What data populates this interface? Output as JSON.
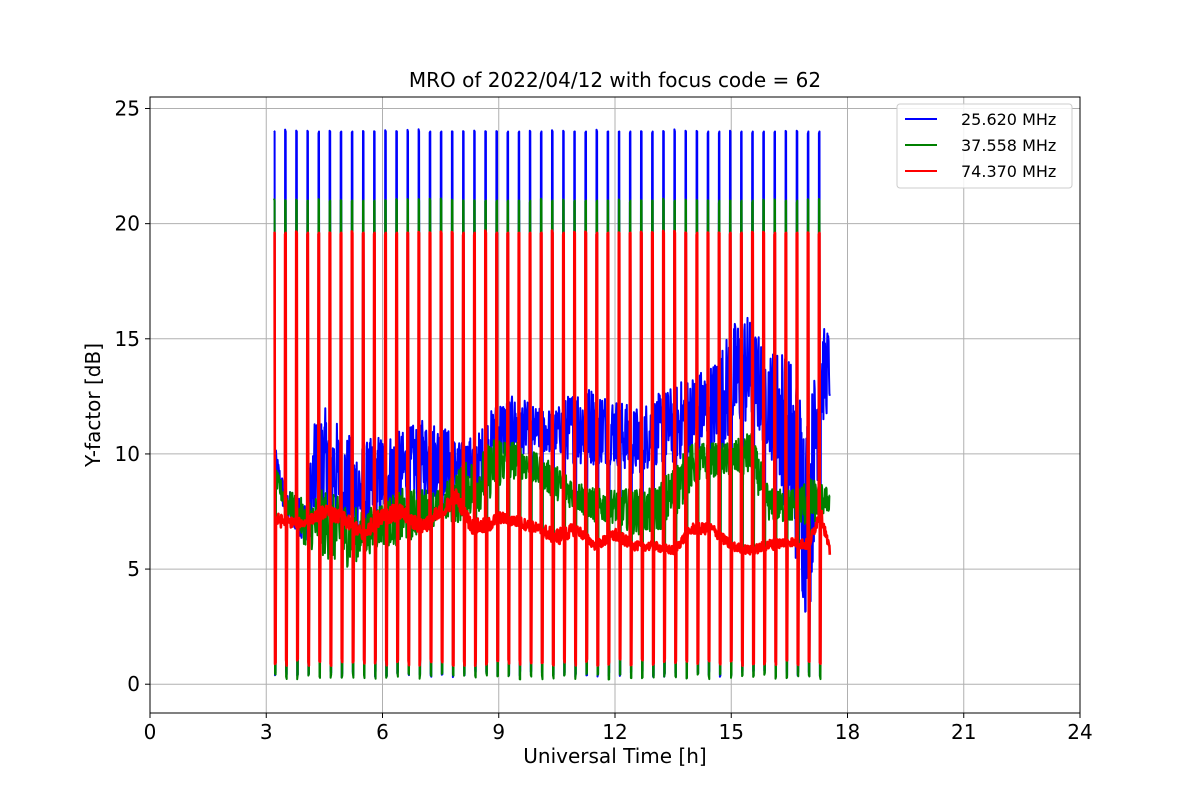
{
  "chart_data": {
    "type": "line",
    "title": "MRO of 2022/04/12 with focus code = 62",
    "xlabel": "Universal Time [h]",
    "ylabel": "Y-factor [dB]",
    "xlim": [
      0,
      24
    ],
    "ylim": [
      -1.25,
      25.5
    ],
    "x_ticks": [
      0,
      3,
      6,
      9,
      12,
      15,
      18,
      21,
      24
    ],
    "y_ticks": [
      0,
      5,
      10,
      15,
      20,
      25
    ],
    "grid": true,
    "legend_position": "top-right",
    "cycle": {
      "start_h": 3.2,
      "end_h": 17.55,
      "num_cycles": 50,
      "description": "calibration spikes repeat each cycle; series drop near 0 dB and peak at calibration level"
    },
    "series": [
      {
        "name": "25.620 MHz",
        "color": "#0000ff",
        "calibration_peak_db": 24.0,
        "calibration_low_db": 0.3,
        "envelope": {
          "x": [
            3.2,
            3.5,
            4.0,
            4.3,
            4.6,
            5.0,
            5.5,
            6.0,
            6.5,
            7.0,
            7.5,
            8.0,
            8.5,
            9.0,
            9.5,
            10.0,
            10.5,
            11.0,
            11.5,
            12.0,
            12.5,
            13.0,
            13.5,
            14.0,
            14.5,
            15.0,
            15.3,
            15.6,
            16.0,
            16.4,
            16.8,
            17.0,
            17.3,
            17.55
          ],
          "low": [
            9.5,
            7.0,
            6.2,
            6.5,
            7.5,
            6.5,
            6.0,
            7.0,
            7.5,
            8.0,
            8.0,
            8.5,
            8.5,
            9.5,
            10.0,
            10.0,
            10.0,
            9.5,
            9.5,
            9.5,
            9.0,
            9.5,
            9.5,
            10.0,
            10.0,
            10.5,
            11.0,
            11.0,
            10.0,
            7.5,
            4.0,
            2.0,
            11.0,
            12.0
          ],
          "high": [
            10.5,
            8.5,
            8.0,
            12.0,
            12.0,
            11.0,
            10.5,
            11.0,
            11.0,
            11.5,
            11.5,
            10.5,
            11.0,
            12.5,
            12.5,
            12.0,
            12.0,
            13.0,
            13.0,
            12.5,
            12.0,
            12.5,
            13.0,
            13.5,
            14.0,
            15.5,
            16.5,
            15.5,
            14.5,
            15.0,
            13.0,
            12.0,
            15.5,
            15.5
          ]
        }
      },
      {
        "name": "37.558 MHz",
        "color": "#008000",
        "calibration_peak_db": 21.0,
        "calibration_low_db": 0.2,
        "envelope": {
          "x": [
            3.2,
            3.5,
            4.0,
            4.5,
            5.0,
            5.5,
            6.0,
            6.5,
            7.0,
            7.5,
            8.0,
            8.5,
            9.0,
            9.5,
            10.0,
            10.5,
            11.0,
            11.5,
            12.0,
            12.5,
            13.0,
            13.5,
            14.0,
            14.5,
            15.0,
            15.5,
            16.0,
            16.5,
            17.0,
            17.55
          ],
          "low": [
            8.5,
            7.5,
            6.0,
            5.5,
            5.0,
            5.5,
            6.0,
            6.0,
            6.5,
            7.0,
            7.0,
            7.5,
            8.5,
            9.0,
            8.5,
            8.0,
            7.5,
            7.0,
            7.0,
            6.5,
            6.5,
            7.0,
            8.5,
            9.0,
            9.0,
            9.0,
            7.0,
            7.0,
            6.8,
            7.5
          ],
          "high": [
            9.5,
            8.5,
            8.0,
            8.5,
            8.0,
            7.5,
            8.0,
            8.5,
            8.5,
            8.5,
            9.5,
            10.0,
            11.0,
            10.5,
            10.0,
            9.5,
            9.0,
            8.5,
            8.5,
            8.5,
            8.5,
            9.5,
            10.5,
            10.5,
            10.5,
            11.0,
            8.5,
            8.5,
            9.0,
            8.5
          ]
        }
      },
      {
        "name": "74.370 MHz",
        "color": "#ff0000",
        "calibration_peak_db": 19.6,
        "calibration_low_db": 0.8,
        "envelope": {
          "x": [
            3.2,
            3.5,
            4.0,
            4.5,
            5.0,
            5.5,
            6.0,
            6.5,
            7.0,
            7.5,
            7.9,
            8.3,
            8.7,
            9.0,
            9.5,
            10.0,
            10.5,
            11.0,
            11.5,
            12.0,
            12.5,
            13.0,
            13.5,
            14.0,
            14.5,
            15.0,
            15.5,
            16.0,
            16.5,
            17.0,
            17.3,
            17.55
          ],
          "low": [
            6.8,
            6.8,
            6.8,
            7.2,
            6.8,
            6.2,
            7.0,
            7.0,
            6.5,
            7.0,
            7.8,
            6.5,
            6.5,
            7.0,
            6.8,
            6.5,
            6.0,
            6.5,
            5.8,
            6.2,
            5.8,
            5.8,
            5.6,
            6.5,
            6.5,
            5.8,
            5.6,
            5.8,
            6.0,
            5.8,
            7.2,
            5.5
          ],
          "high": [
            7.5,
            7.3,
            7.2,
            7.8,
            7.5,
            6.8,
            7.8,
            7.8,
            7.2,
            7.8,
            8.5,
            7.2,
            7.2,
            7.5,
            7.3,
            7.0,
            6.8,
            7.0,
            6.2,
            6.8,
            6.2,
            6.2,
            6.0,
            7.0,
            7.0,
            6.2,
            6.0,
            6.3,
            6.4,
            6.3,
            7.8,
            5.9
          ]
        }
      }
    ]
  }
}
